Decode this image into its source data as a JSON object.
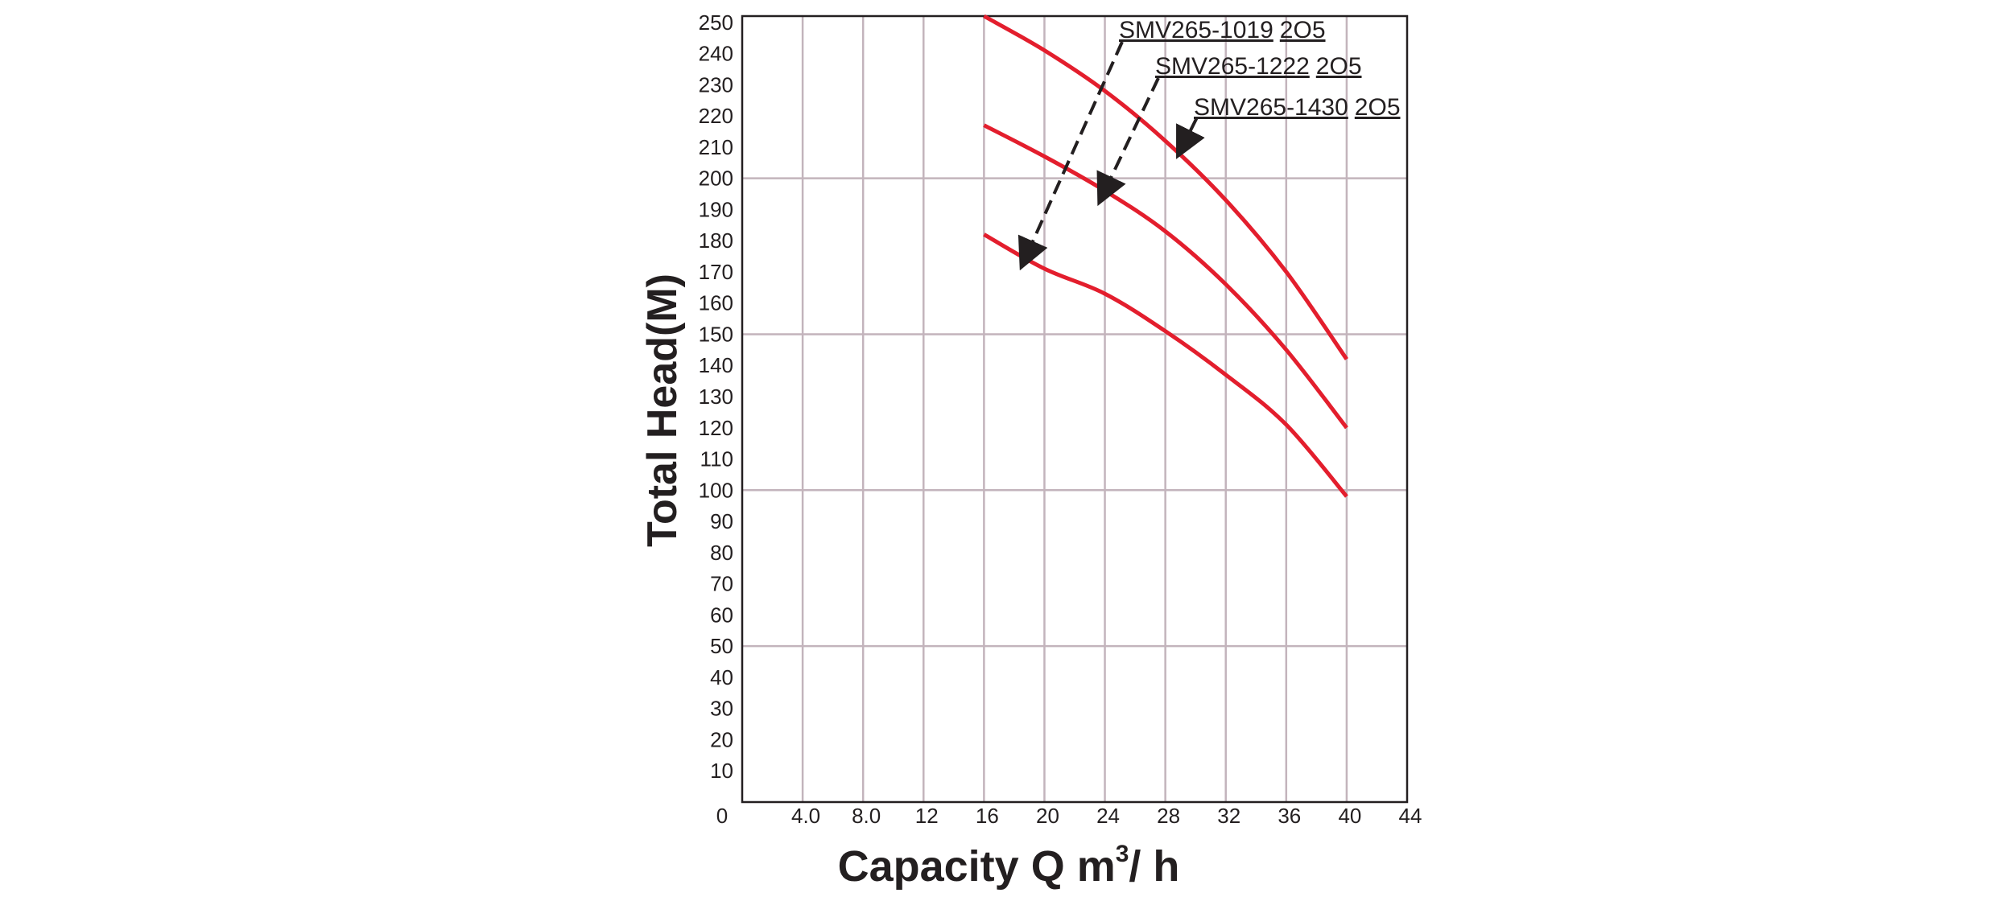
{
  "chart_data": {
    "type": "line",
    "title": "",
    "xlabel": "Capacity Q m",
    "xlabel_sup": "3",
    "xlabel_tail": "/ h",
    "ylabel": "Total Head(M)",
    "xlim": [
      0,
      44
    ],
    "ylim": [
      0,
      252
    ],
    "x_ticks": [
      {
        "value": 0,
        "label": "0"
      },
      {
        "value": 4,
        "label": "4.0"
      },
      {
        "value": 8,
        "label": "8.0"
      },
      {
        "value": 12,
        "label": "12"
      },
      {
        "value": 16,
        "label": "16"
      },
      {
        "value": 20,
        "label": "20"
      },
      {
        "value": 24,
        "label": "24"
      },
      {
        "value": 28,
        "label": "28"
      },
      {
        "value": 32,
        "label": "32"
      },
      {
        "value": 36,
        "label": "36"
      },
      {
        "value": 40,
        "label": "40"
      },
      {
        "value": 44,
        "label": "44"
      }
    ],
    "y_ticks": [
      "10",
      "20",
      "30",
      "40",
      "50",
      "60",
      "70",
      "80",
      "90",
      "100",
      "110",
      "120",
      "130",
      "140",
      "150",
      "160",
      "170",
      "180",
      "190",
      "200",
      "210",
      "220",
      "230",
      "240",
      "250"
    ],
    "vertical_gridlines": [
      4,
      8,
      12,
      16,
      20,
      24,
      28,
      32,
      36,
      40
    ],
    "horizontal_gridlines": [
      50,
      100,
      150,
      200
    ],
    "grid": true,
    "series_color": "#e31e2d",
    "series": [
      {
        "name": "SMV265-1430",
        "name_suffix": "2O5",
        "x": [
          16,
          20,
          24,
          28,
          32,
          36,
          40
        ],
        "y": [
          252,
          241,
          228,
          212,
          193,
          170,
          142
        ]
      },
      {
        "name": "SMV265-1222",
        "name_suffix": "2O5",
        "x": [
          16,
          20,
          24,
          28,
          32,
          36,
          40
        ],
        "y": [
          217,
          207,
          196,
          183,
          166,
          145,
          120
        ]
      },
      {
        "name": "SMV265-1019",
        "name_suffix": "2O5",
        "x": [
          16,
          20,
          24,
          28,
          32,
          36,
          40
        ],
        "y": [
          182,
          171,
          163,
          151,
          137,
          121,
          98
        ]
      }
    ]
  }
}
